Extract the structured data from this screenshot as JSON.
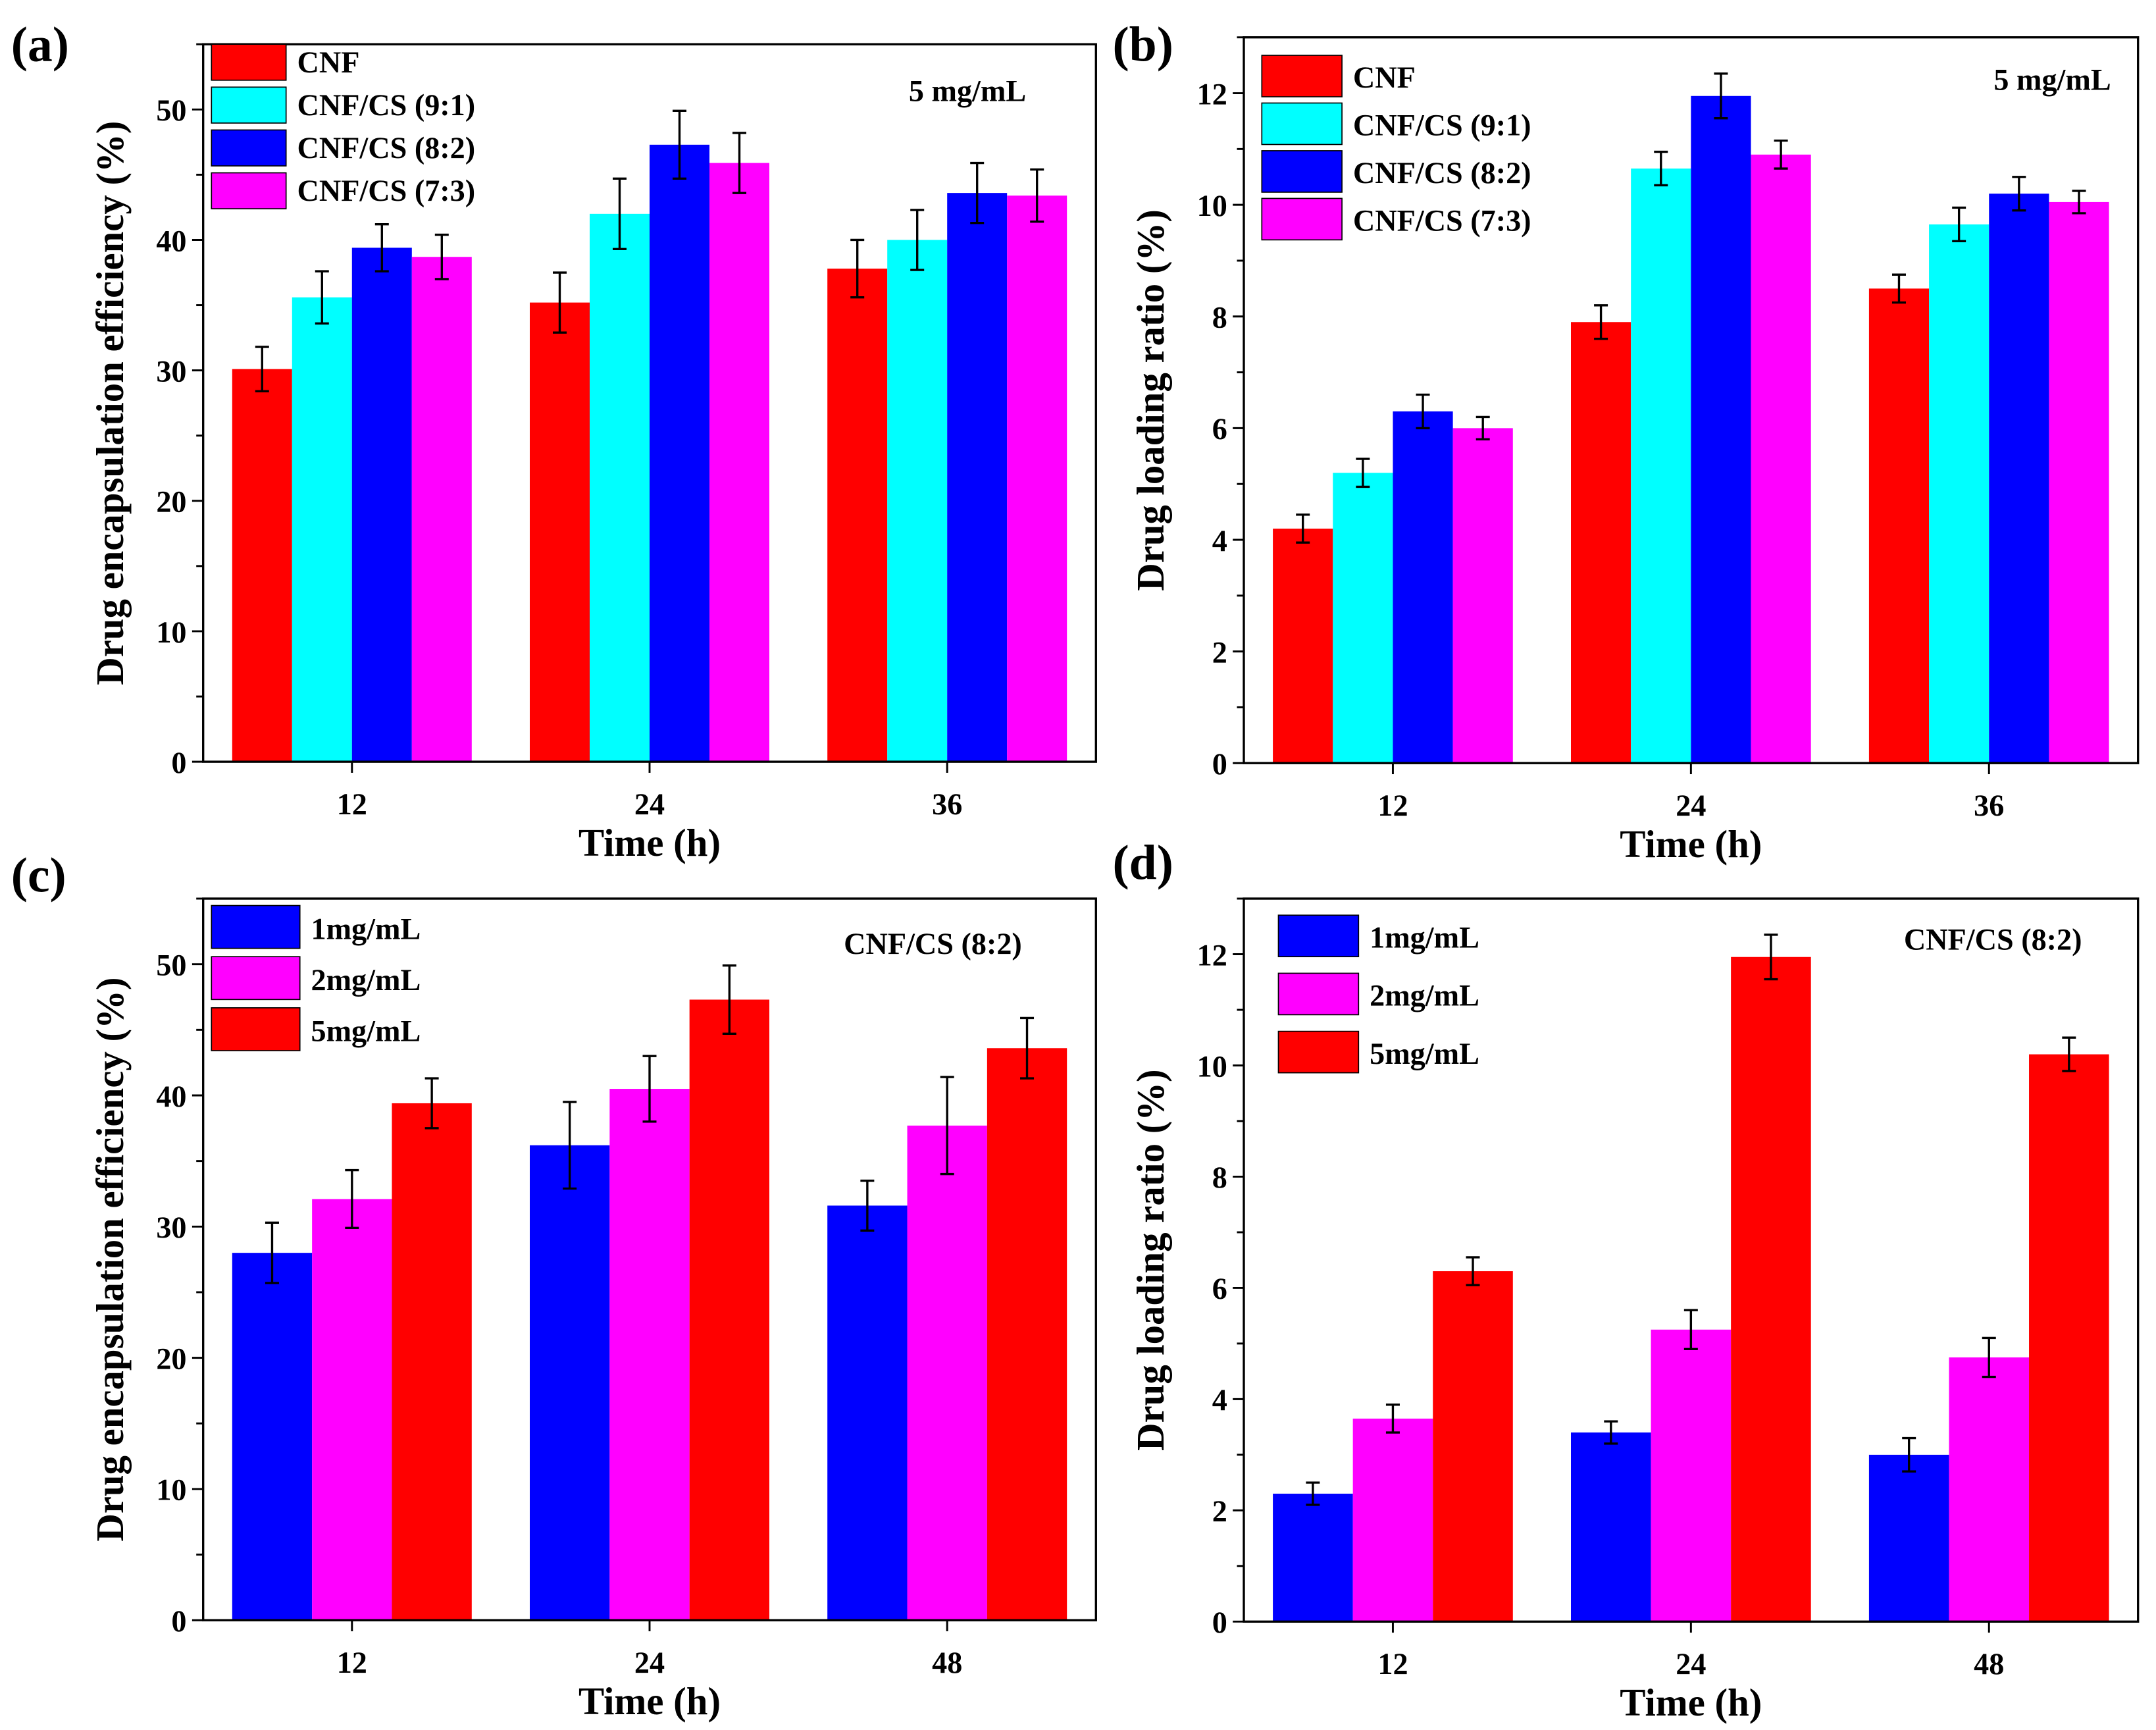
{
  "chart_data": [
    {
      "panel_label": "(a)",
      "type": "bar",
      "annotation": "5 mg/mL",
      "xlabel": "Time (h)",
      "ylabel": "Drug encapsulation efficiency (%)",
      "categories": [
        "12",
        "24",
        "36"
      ],
      "ylim": [
        0,
        55
      ],
      "yticks": [
        0,
        10,
        20,
        30,
        40,
        50
      ],
      "legend_position": "top-left",
      "series": [
        {
          "name": "CNF",
          "color": "#ff0000",
          "values": [
            30.1,
            35.2,
            37.8
          ],
          "errors": [
            1.7,
            2.3,
            2.2
          ]
        },
        {
          "name": "CNF/CS (9:1)",
          "color": "#00ffff",
          "values": [
            35.6,
            42.0,
            40.0
          ],
          "errors": [
            2.0,
            2.7,
            2.3
          ]
        },
        {
          "name": "CNF/CS (8:2)",
          "color": "#0000ff",
          "values": [
            39.4,
            47.3,
            43.6
          ],
          "errors": [
            1.8,
            2.6,
            2.3
          ]
        },
        {
          "name": "CNF/CS (7:3)",
          "color": "#ff00ff",
          "values": [
            38.7,
            45.9,
            43.4
          ],
          "errors": [
            1.7,
            2.3,
            2.0
          ]
        }
      ]
    },
    {
      "panel_label": "(b)",
      "type": "bar",
      "annotation": "5 mg/mL",
      "xlabel": "Time (h)",
      "ylabel": "Drug loading ratio (%)",
      "categories": [
        "12",
        "24",
        "36"
      ],
      "ylim": [
        0,
        13
      ],
      "yticks": [
        0,
        2,
        4,
        6,
        8,
        10,
        12
      ],
      "legend_position": "top-left",
      "series": [
        {
          "name": "CNF",
          "color": "#ff0000",
          "values": [
            4.2,
            7.9,
            8.5
          ],
          "errors": [
            0.25,
            0.3,
            0.25
          ]
        },
        {
          "name": "CNF/CS (9:1)",
          "color": "#00ffff",
          "values": [
            5.2,
            10.65,
            9.65
          ],
          "errors": [
            0.25,
            0.3,
            0.3
          ]
        },
        {
          "name": "CNF/CS (8:2)",
          "color": "#0000ff",
          "values": [
            6.3,
            11.95,
            10.2
          ],
          "errors": [
            0.3,
            0.4,
            0.3
          ]
        },
        {
          "name": "CNF/CS (7:3)",
          "color": "#ff00ff",
          "values": [
            6.0,
            10.9,
            10.05
          ],
          "errors": [
            0.2,
            0.25,
            0.2
          ]
        }
      ]
    },
    {
      "panel_label": "(c)",
      "type": "bar",
      "annotation": "CNF/CS (8:2)",
      "xlabel": "Time (h)",
      "ylabel": "Drug encapsulation efficiency (%)",
      "categories": [
        "12",
        "24",
        "48"
      ],
      "ylim": [
        0,
        55
      ],
      "yticks": [
        0,
        10,
        20,
        30,
        40,
        50
      ],
      "legend_position": "top-left",
      "series": [
        {
          "name": "1mg/mL",
          "color": "#0000ff",
          "values": [
            28.0,
            36.2,
            31.6
          ],
          "errors": [
            2.3,
            3.3,
            1.9
          ]
        },
        {
          "name": "2mg/mL",
          "color": "#ff00ff",
          "values": [
            32.1,
            40.5,
            37.7
          ],
          "errors": [
            2.2,
            2.5,
            3.7
          ]
        },
        {
          "name": "5mg/mL",
          "color": "#ff0000",
          "values": [
            39.4,
            47.3,
            43.6
          ],
          "errors": [
            1.9,
            2.6,
            2.3
          ]
        }
      ]
    },
    {
      "panel_label": "(d)",
      "type": "bar",
      "annotation": "CNF/CS (8:2)",
      "xlabel": "Time (h)",
      "ylabel": "Drug loading ratio (%)",
      "categories": [
        "12",
        "24",
        "48"
      ],
      "ylim": [
        0,
        13
      ],
      "yticks": [
        0,
        2,
        4,
        6,
        8,
        10,
        12
      ],
      "legend_position": "top-left",
      "series": [
        {
          "name": "1mg/mL",
          "color": "#0000ff",
          "values": [
            2.3,
            3.4,
            3.0
          ],
          "errors": [
            0.2,
            0.2,
            0.3
          ]
        },
        {
          "name": "2mg/mL",
          "color": "#ff00ff",
          "values": [
            3.65,
            5.25,
            4.75
          ],
          "errors": [
            0.25,
            0.35,
            0.35
          ]
        },
        {
          "name": "5mg/mL",
          "color": "#ff0000",
          "values": [
            6.3,
            11.95,
            10.2
          ],
          "errors": [
            0.25,
            0.4,
            0.3
          ]
        }
      ]
    }
  ]
}
